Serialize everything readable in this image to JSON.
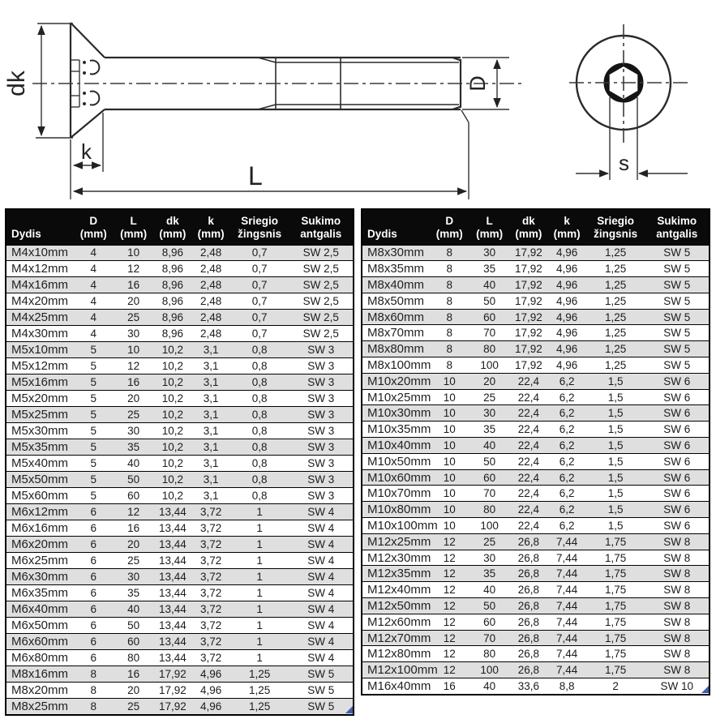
{
  "drawing": {
    "labels": {
      "head_diameter": "dk",
      "head_height": "k",
      "length": "L",
      "shank_diameter": "D",
      "socket_size": "s"
    }
  },
  "tables": [
    {
      "columns": [
        "Dydis",
        "D\n(mm)",
        "L\n(mm)",
        "dk\n(mm)",
        "k\n(mm)",
        "Sriegio\nžingsnis",
        "Sukimo\nantgalis"
      ],
      "rows": [
        [
          "M4x10mm",
          "4",
          "10",
          "8,96",
          "2,48",
          "0,7",
          "SW 2,5"
        ],
        [
          "M4x12mm",
          "4",
          "12",
          "8,96",
          "2,48",
          "0,7",
          "SW 2,5"
        ],
        [
          "M4x16mm",
          "4",
          "16",
          "8,96",
          "2,48",
          "0,7",
          "SW 2,5"
        ],
        [
          "M4x20mm",
          "4",
          "20",
          "8,96",
          "2,48",
          "0,7",
          "SW 2,5"
        ],
        [
          "M4x25mm",
          "4",
          "25",
          "8,96",
          "2,48",
          "0,7",
          "SW 2,5"
        ],
        [
          "M4x30mm",
          "4",
          "30",
          "8,96",
          "2,48",
          "0,7",
          "SW 2,5"
        ],
        [
          "M5x10mm",
          "5",
          "10",
          "10,2",
          "3,1",
          "0,8",
          "SW 3"
        ],
        [
          "M5x12mm",
          "5",
          "12",
          "10,2",
          "3,1",
          "0,8",
          "SW 3"
        ],
        [
          "M5x16mm",
          "5",
          "16",
          "10,2",
          "3,1",
          "0,8",
          "SW 3"
        ],
        [
          "M5x20mm",
          "5",
          "20",
          "10,2",
          "3,1",
          "0,8",
          "SW 3"
        ],
        [
          "M5x25mm",
          "5",
          "25",
          "10,2",
          "3,1",
          "0,8",
          "SW 3"
        ],
        [
          "M5x30mm",
          "5",
          "30",
          "10,2",
          "3,1",
          "0,8",
          "SW 3"
        ],
        [
          "M5x35mm",
          "5",
          "35",
          "10,2",
          "3,1",
          "0,8",
          "SW 3"
        ],
        [
          "M5x40mm",
          "5",
          "40",
          "10,2",
          "3,1",
          "0,8",
          "SW 3"
        ],
        [
          "M5x50mm",
          "5",
          "50",
          "10,2",
          "3,1",
          "0,8",
          "SW 3"
        ],
        [
          "M5x60mm",
          "5",
          "60",
          "10,2",
          "3,1",
          "0,8",
          "SW 3"
        ],
        [
          "M6x12mm",
          "6",
          "12",
          "13,44",
          "3,72",
          "1",
          "SW 4"
        ],
        [
          "M6x16mm",
          "6",
          "16",
          "13,44",
          "3,72",
          "1",
          "SW 4"
        ],
        [
          "M6x20mm",
          "6",
          "20",
          "13,44",
          "3,72",
          "1",
          "SW 4"
        ],
        [
          "M6x25mm",
          "6",
          "25",
          "13,44",
          "3,72",
          "1",
          "SW 4"
        ],
        [
          "M6x30mm",
          "6",
          "30",
          "13,44",
          "3,72",
          "1",
          "SW 4"
        ],
        [
          "M6x35mm",
          "6",
          "35",
          "13,44",
          "3,72",
          "1",
          "SW 4"
        ],
        [
          "M6x40mm",
          "6",
          "40",
          "13,44",
          "3,72",
          "1",
          "SW 4"
        ],
        [
          "M6x50mm",
          "6",
          "50",
          "13,44",
          "3,72",
          "1",
          "SW 4"
        ],
        [
          "M6x60mm",
          "6",
          "60",
          "13,44",
          "3,72",
          "1",
          "SW 4"
        ],
        [
          "M6x80mm",
          "6",
          "80",
          "13,44",
          "3,72",
          "1",
          "SW 4"
        ],
        [
          "M8x16mm",
          "8",
          "16",
          "17,92",
          "4,96",
          "1,25",
          "SW 5"
        ],
        [
          "M8x20mm",
          "8",
          "20",
          "17,92",
          "4,96",
          "1,25",
          "SW 5"
        ],
        [
          "M8x25mm",
          "8",
          "25",
          "17,92",
          "4,96",
          "1,25",
          "SW 5"
        ]
      ]
    },
    {
      "columns": [
        "Dydis",
        "D\n(mm)",
        "L\n(mm)",
        "dk\n(mm)",
        "k\n(mm)",
        "Sriegio\nžingsnis",
        "Sukimo\nantgalis"
      ],
      "rows": [
        [
          "M8x30mm",
          "8",
          "30",
          "17,92",
          "4,96",
          "1,25",
          "SW 5"
        ],
        [
          "M8x35mm",
          "8",
          "35",
          "17,92",
          "4,96",
          "1,25",
          "SW 5"
        ],
        [
          "M8x40mm",
          "8",
          "40",
          "17,92",
          "4,96",
          "1,25",
          "SW 5"
        ],
        [
          "M8x50mm",
          "8",
          "50",
          "17,92",
          "4,96",
          "1,25",
          "SW 5"
        ],
        [
          "M8x60mm",
          "8",
          "60",
          "17,92",
          "4,96",
          "1,25",
          "SW 5"
        ],
        [
          "M8x70mm",
          "8",
          "70",
          "17,92",
          "4,96",
          "1,25",
          "SW 5"
        ],
        [
          "M8x80mm",
          "8",
          "80",
          "17,92",
          "4,96",
          "1,25",
          "SW 5"
        ],
        [
          "M8x100mm",
          "8",
          "100",
          "17,92",
          "4,96",
          "1,25",
          "SW 5"
        ],
        [
          "M10x20mm",
          "10",
          "20",
          "22,4",
          "6,2",
          "1,5",
          "SW 6"
        ],
        [
          "M10x25mm",
          "10",
          "25",
          "22,4",
          "6,2",
          "1,5",
          "SW 6"
        ],
        [
          "M10x30mm",
          "10",
          "30",
          "22,4",
          "6,2",
          "1,5",
          "SW 6"
        ],
        [
          "M10x35mm",
          "10",
          "35",
          "22,4",
          "6,2",
          "1,5",
          "SW 6"
        ],
        [
          "M10x40mm",
          "10",
          "40",
          "22,4",
          "6,2",
          "1,5",
          "SW 6"
        ],
        [
          "M10x50mm",
          "10",
          "50",
          "22,4",
          "6,2",
          "1,5",
          "SW 6"
        ],
        [
          "M10x60mm",
          "10",
          "60",
          "22,4",
          "6,2",
          "1,5",
          "SW 6"
        ],
        [
          "M10x70mm",
          "10",
          "70",
          "22,4",
          "6,2",
          "1,5",
          "SW 6"
        ],
        [
          "M10x80mm",
          "10",
          "80",
          "22,4",
          "6,2",
          "1,5",
          "SW 6"
        ],
        [
          "M10x100mm",
          "10",
          "100",
          "22,4",
          "6,2",
          "1,5",
          "SW 6"
        ],
        [
          "M12x25mm",
          "12",
          "25",
          "26,8",
          "7,44",
          "1,75",
          "SW 8"
        ],
        [
          "M12x30mm",
          "12",
          "30",
          "26,8",
          "7,44",
          "1,75",
          "SW 8"
        ],
        [
          "M12x35mm",
          "12",
          "35",
          "26,8",
          "7,44",
          "1,75",
          "SW 8"
        ],
        [
          "M12x40mm",
          "12",
          "40",
          "26,8",
          "7,44",
          "1,75",
          "SW 8"
        ],
        [
          "M12x50mm",
          "12",
          "50",
          "26,8",
          "7,44",
          "1,75",
          "SW 8"
        ],
        [
          "M12x60mm",
          "12",
          "60",
          "26,8",
          "7,44",
          "1,75",
          "SW 8"
        ],
        [
          "M12x70mm",
          "12",
          "70",
          "26,8",
          "7,44",
          "1,75",
          "SW 8"
        ],
        [
          "M12x80mm",
          "12",
          "80",
          "26,8",
          "7,44",
          "1,75",
          "SW 8"
        ],
        [
          "M12x100mm",
          "12",
          "100",
          "26,8",
          "7,44",
          "1,75",
          "SW 8"
        ],
        [
          "M16x40mm",
          "16",
          "40",
          "33,6",
          "8,8",
          "2",
          "SW 10"
        ]
      ]
    }
  ]
}
